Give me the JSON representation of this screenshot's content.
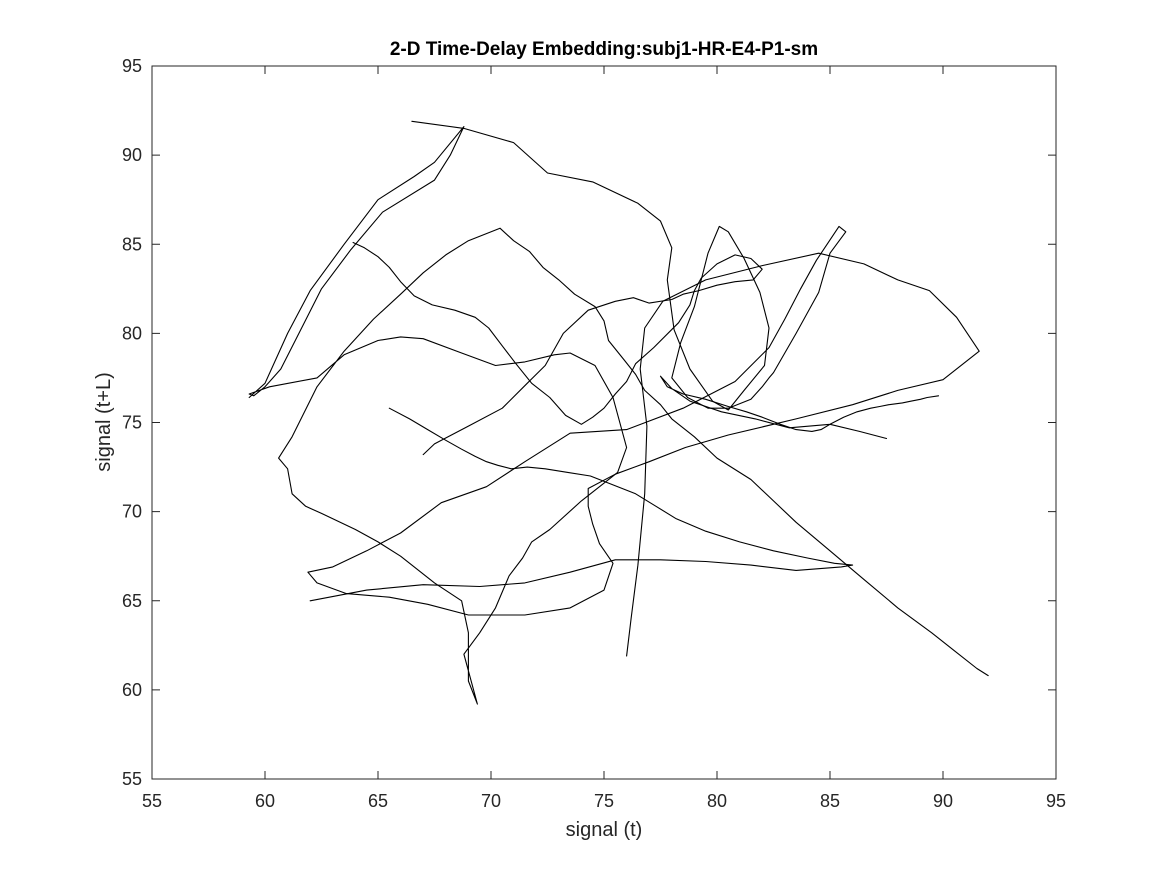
{
  "chart_data": {
    "type": "line",
    "title": "2-D Time-Delay Embedding:subj1-HR-E4-P1-sm",
    "xlabel": "signal (t)",
    "ylabel": "signal (t+L)",
    "xlim": [
      55,
      95
    ],
    "ylim": [
      55,
      95
    ],
    "xticks": [
      "55",
      "60",
      "65",
      "70",
      "75",
      "80",
      "85",
      "90",
      "95"
    ],
    "yticks": [
      "55",
      "60",
      "65",
      "70",
      "75",
      "80",
      "85",
      "90",
      "95"
    ],
    "grid": false,
    "legend": "none",
    "line_color": "#000000",
    "series": [
      {
        "x": [
          66.5,
          68.8,
          71.0,
          72.5,
          74.5,
          76.5,
          77.5,
          78.0,
          77.8,
          78.1,
          78.8,
          79.8,
          80.5,
          81.2,
          82.1,
          82.3,
          81.9,
          81.2,
          80.5,
          80.1,
          79.6,
          79.0,
          78.4,
          78.0,
          78.7,
          79.6,
          80.5,
          81.5,
          82.0,
          82.3,
          82.5,
          83.5,
          84.5,
          85.0,
          85.7,
          85.4,
          84.4,
          83.7,
          83.0,
          82.3,
          80.8,
          78.5,
          76.0,
          73.5,
          71.5,
          69.8,
          67.8,
          66.0,
          64.5,
          63.0,
          61.9,
          62.3,
          63.6,
          65.5,
          67.2,
          69.0,
          71.5,
          73.5,
          75.0,
          75.4,
          74.8,
          74.5,
          74.3,
          74.3,
          75.5,
          77.0,
          78.6,
          80.5,
          83.5,
          86.0,
          88.0,
          90.0,
          91.6,
          90.6,
          89.4,
          88.0,
          86.5,
          84.5,
          82.0,
          79.5,
          77.6,
          76.8,
          76.6,
          76.9,
          76.8,
          76.5,
          76.2,
          76.0
        ],
        "y": [
          91.9,
          91.5,
          90.7,
          89.0,
          88.5,
          87.3,
          86.3,
          84.8,
          83.0,
          80.2,
          78.0,
          76.2,
          75.7,
          76.8,
          78.2,
          80.3,
          82.3,
          84.2,
          85.7,
          86.0,
          84.5,
          81.5,
          79.5,
          77.5,
          76.4,
          75.8,
          75.8,
          76.3,
          77.0,
          77.5,
          77.8,
          80.0,
          82.3,
          84.5,
          85.7,
          86.0,
          84.1,
          82.5,
          80.8,
          79.2,
          77.3,
          75.8,
          74.6,
          74.4,
          72.8,
          71.4,
          70.5,
          68.8,
          67.8,
          66.9,
          66.6,
          66.0,
          65.4,
          65.2,
          64.8,
          64.2,
          64.2,
          64.6,
          65.6,
          67.1,
          68.2,
          69.3,
          70.3,
          71.3,
          72.1,
          72.8,
          73.6,
          74.3,
          75.2,
          76.0,
          76.8,
          77.4,
          79.0,
          80.9,
          82.4,
          83.0,
          83.9,
          84.5,
          83.8,
          83.0,
          81.8,
          80.3,
          78.0,
          74.8,
          71.0,
          67.0,
          64.0,
          61.9
        ]
      },
      {
        "x": [
          59.3,
          60.0,
          61.0,
          62.0,
          63.5,
          65.0,
          66.6,
          67.5,
          68.8,
          68.2,
          67.5,
          65.2,
          63.8,
          62.5,
          61.5,
          60.7,
          60.0,
          59.5,
          59.3,
          60.2,
          62.3,
          63.5,
          65.0,
          66.0,
          67.0,
          68.7,
          70.2,
          71.5,
          72.8,
          73.5,
          74.6,
          75.4,
          76.0,
          75.6,
          74.0,
          72.6,
          71.8,
          71.4,
          70.8,
          70.2,
          69.5,
          68.8,
          69.4,
          69.0,
          69.0,
          68.7,
          67.5,
          66.0,
          65.0,
          64.0,
          62.5,
          61.8,
          61.2,
          61.0,
          60.6,
          61.2,
          62.3,
          63.5,
          64.8,
          66.0,
          67.0,
          68.0,
          69.0,
          70.4,
          71.0,
          71.7,
          72.3,
          73.0,
          73.7,
          74.6,
          75.0,
          75.2,
          75.9,
          76.4,
          76.8,
          77.5,
          78.0,
          79.0,
          80.0,
          81.5,
          82.5,
          83.5,
          85.0,
          86.5,
          88.0,
          89.5,
          90.5,
          91.5,
          92.0
        ],
        "y": [
          76.4,
          77.2,
          80.0,
          82.4,
          85.0,
          87.5,
          88.8,
          89.6,
          91.6,
          90.0,
          88.6,
          86.8,
          84.7,
          82.5,
          80.0,
          78.0,
          77.0,
          76.5,
          76.6,
          77.0,
          77.5,
          78.8,
          79.6,
          79.8,
          79.7,
          78.9,
          78.2,
          78.4,
          78.8,
          78.9,
          78.2,
          76.4,
          73.6,
          72.2,
          70.6,
          69.0,
          68.3,
          67.4,
          66.4,
          64.6,
          63.2,
          62.0,
          59.2,
          60.5,
          63.2,
          65.0,
          66.0,
          67.5,
          68.3,
          69.0,
          69.9,
          70.3,
          71.0,
          72.4,
          73.0,
          74.2,
          77.0,
          79.0,
          80.8,
          82.2,
          83.4,
          84.4,
          85.2,
          85.9,
          85.2,
          84.6,
          83.7,
          83.0,
          82.2,
          81.5,
          80.7,
          79.6,
          78.5,
          77.7,
          76.8,
          76.0,
          75.2,
          74.2,
          73.0,
          71.8,
          70.6,
          69.4,
          67.8,
          66.2,
          64.6,
          63.2,
          62.2,
          61.2,
          60.8
        ]
      },
      {
        "x": [
          67.0,
          67.5,
          69.0,
          70.5,
          71.6,
          72.4,
          73.2,
          74.3,
          75.5,
          76.3,
          77.0,
          78.0,
          78.5,
          79.2,
          80.0,
          80.8,
          81.6,
          82.0,
          81.5,
          80.8,
          80.0,
          79.3,
          79.0,
          78.8,
          78.3,
          77.2,
          76.4,
          76.0,
          75.5,
          75.0,
          74.5,
          74.0,
          73.3,
          72.6,
          71.8,
          71.1,
          70.5,
          69.9,
          69.3,
          68.4,
          67.4,
          66.6,
          66.0,
          65.5,
          65.0,
          64.4,
          63.9
        ],
        "y": [
          73.2,
          73.8,
          74.8,
          75.8,
          77.2,
          78.2,
          80.0,
          81.3,
          81.8,
          82.0,
          81.7,
          81.9,
          82.2,
          82.4,
          82.7,
          82.9,
          83.0,
          83.6,
          84.2,
          84.4,
          83.9,
          83.1,
          82.4,
          81.6,
          80.6,
          79.2,
          78.3,
          77.3,
          76.6,
          75.8,
          75.3,
          74.9,
          75.4,
          76.4,
          77.2,
          78.3,
          79.3,
          80.3,
          80.9,
          81.3,
          81.6,
          82.1,
          82.9,
          83.7,
          84.3,
          84.8,
          85.1
        ]
      },
      {
        "x": [
          87.5,
          86.3,
          85.0,
          83.2,
          81.7,
          80.2,
          78.8,
          78.0,
          77.5,
          77.8,
          78.5,
          79.5,
          80.5,
          81.3,
          82.0,
          82.8,
          83.5,
          84.2,
          84.6,
          85.0,
          85.6,
          86.2,
          86.8,
          87.2,
          87.6,
          88.2,
          88.6,
          89.0,
          89.3,
          89.8
        ],
        "y": [
          74.1,
          74.5,
          74.9,
          74.7,
          75.2,
          75.6,
          76.2,
          76.9,
          77.6,
          77.0,
          76.6,
          76.3,
          75.9,
          75.6,
          75.3,
          74.9,
          74.6,
          74.5,
          74.6,
          74.9,
          75.3,
          75.6,
          75.8,
          75.9,
          76.0,
          76.1,
          76.2,
          76.3,
          76.4,
          76.5
        ]
      },
      {
        "x": [
          62.0,
          64.5,
          67.0,
          69.5,
          71.5,
          73.5,
          75.5,
          77.5,
          79.5,
          81.5,
          83.5,
          85.5,
          86.0,
          85.2,
          84.0,
          82.5,
          81.0,
          79.5,
          78.2,
          77.3,
          76.4,
          75.4,
          74.4,
          73.4,
          72.4,
          71.6,
          70.9,
          70.3,
          69.8,
          69.3,
          68.7,
          68.0,
          67.2,
          66.4,
          65.5
        ],
        "y": [
          65.0,
          65.6,
          65.9,
          65.8,
          66.0,
          66.6,
          67.3,
          67.3,
          67.2,
          67.0,
          66.7,
          66.9,
          67.0,
          67.1,
          67.4,
          67.8,
          68.3,
          68.9,
          69.6,
          70.3,
          71.0,
          71.5,
          72.0,
          72.2,
          72.4,
          72.5,
          72.4,
          72.6,
          72.8,
          73.1,
          73.5,
          74.0,
          74.6,
          75.2,
          75.8
        ]
      }
    ]
  }
}
